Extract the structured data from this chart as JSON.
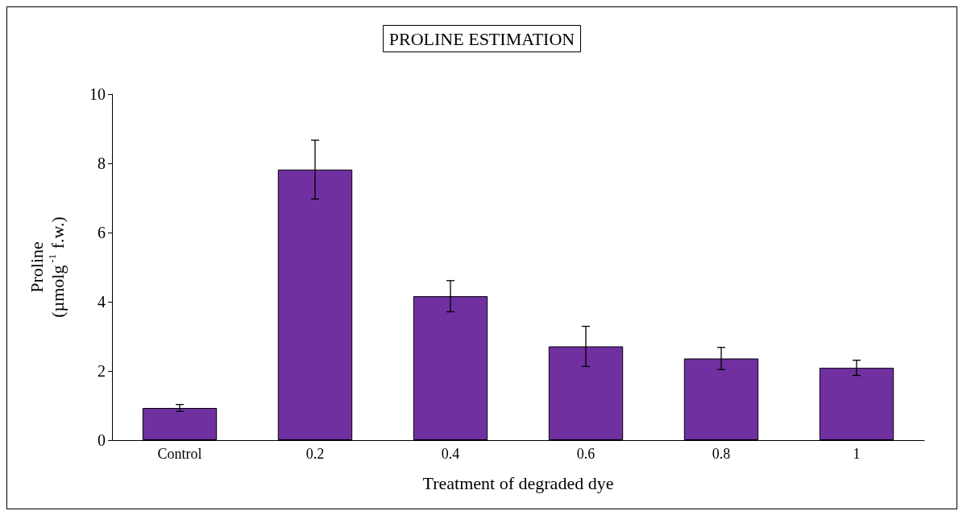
{
  "chart_data": {
    "type": "bar",
    "title": "PROLINE ESTIMATION",
    "xlabel": "Treatment of degraded dye",
    "ylabel": "Proline\n(µmolg$^{-1}$ f.w.)",
    "categories": [
      "Control",
      "0.2",
      "0.4",
      "0.6",
      "0.8",
      "1"
    ],
    "values": [
      0.93,
      7.82,
      4.16,
      2.71,
      2.36,
      2.09
    ],
    "errors": [
      0.1,
      0.85,
      0.45,
      0.58,
      0.32,
      0.22
    ],
    "color": "#7030a0",
    "ylim": [
      0,
      10
    ],
    "yticks": [
      0,
      2,
      4,
      6,
      8,
      10
    ],
    "grid": false
  }
}
